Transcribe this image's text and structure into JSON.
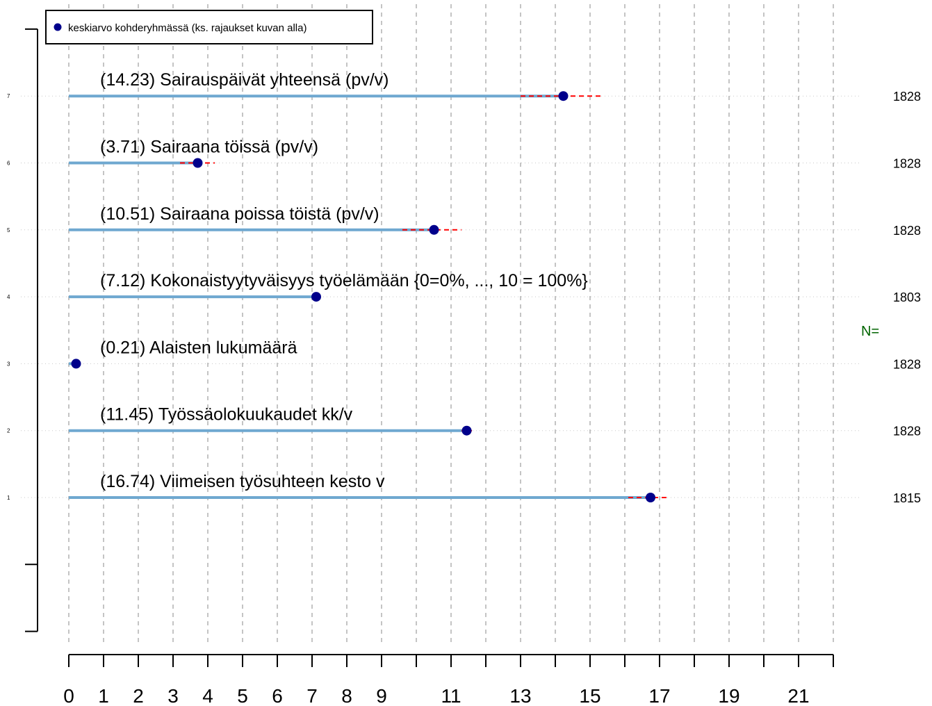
{
  "legend": {
    "label": "keskiarvo kohderyhmässä (ks. rajaukset kuvan alla)",
    "position": "top-left",
    "marker_color": "#00008b"
  },
  "n_label": "N=",
  "colors": {
    "bar": "#6fa8d0",
    "marker": "#00008b",
    "ci": "#ff0000",
    "n_label": "#006400",
    "grid": "#b0b0b0"
  },
  "chart_data": {
    "type": "bar",
    "orientation": "horizontal",
    "grid": true,
    "xlim": [
      0,
      22
    ],
    "x_ticks": [
      0,
      1,
      2,
      3,
      4,
      5,
      6,
      7,
      8,
      9,
      10,
      11,
      12,
      13,
      14,
      15,
      16,
      17,
      18,
      19,
      20,
      21,
      22
    ],
    "x_tick_labels": [
      "0",
      "1",
      "2",
      "3",
      "4",
      "5",
      "6",
      "7",
      "8",
      "9",
      "11",
      "13",
      "15",
      "17",
      "19",
      "21"
    ],
    "x_tick_label_values": [
      0,
      1,
      2,
      3,
      4,
      5,
      6,
      7,
      8,
      9,
      11,
      13,
      15,
      17,
      19,
      21
    ],
    "y_axis": {
      "range": [
        -1,
        8
      ],
      "tick_positions": [
        -1,
        0,
        8
      ]
    },
    "items": [
      {
        "index": 7,
        "label": "(14.23) Sairauspäivät yhteensä (pv/v)",
        "value": 14.23,
        "ci": [
          13.0,
          15.4
        ],
        "n": "1828"
      },
      {
        "index": 6,
        "label": "(3.71) Sairaana töissä (pv/v)",
        "value": 3.71,
        "ci": [
          3.2,
          4.2
        ],
        "n": "1828"
      },
      {
        "index": 5,
        "label": "(10.51) Sairaana poissa töistä (pv/v)",
        "value": 10.51,
        "ci": [
          9.6,
          11.3
        ],
        "n": "1828"
      },
      {
        "index": 4,
        "label": "(7.12) Kokonaistyytyväisyys työelämään {0=0%, ..., 10 = 100%}",
        "value": 7.12,
        "ci": [
          7.02,
          7.22
        ],
        "n": "1803"
      },
      {
        "index": 3,
        "label": "(0.21) Alaisten lukumäärä",
        "value": 0.21,
        "ci": [
          0.12,
          0.3
        ],
        "n": "1828"
      },
      {
        "index": 2,
        "label": "(11.45) Työssäolokuukaudet kk/v",
        "value": 11.45,
        "ci": [
          11.3,
          11.6
        ],
        "n": "1828"
      },
      {
        "index": 1,
        "label": "(16.74) Viimeisen työsuhteen kesto v",
        "value": 16.74,
        "ci": [
          16.1,
          17.3
        ],
        "n": "1815"
      }
    ]
  }
}
